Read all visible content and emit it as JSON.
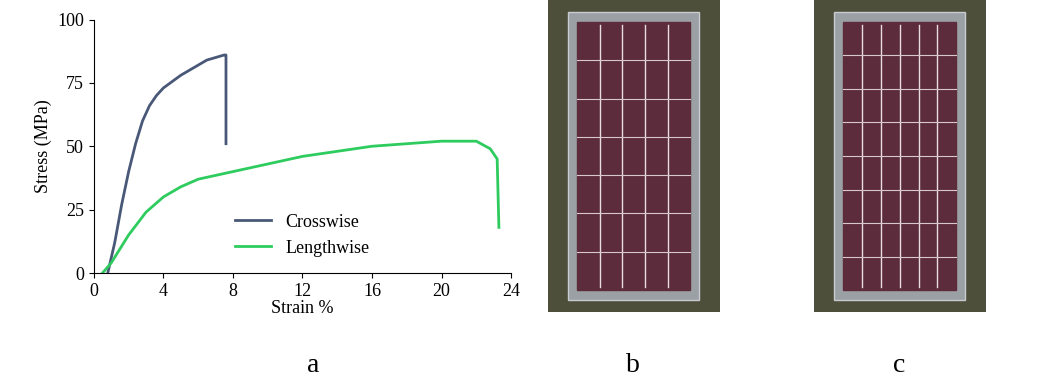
{
  "chart_data": {
    "type": "line",
    "xlabel": "Strain %",
    "ylabel": "Stress (MPa)",
    "xlim": [
      0,
      24
    ],
    "ylim": [
      0,
      100
    ],
    "xticks": [
      0,
      4,
      8,
      12,
      16,
      20,
      24
    ],
    "yticks": [
      0,
      25,
      50,
      75,
      100
    ],
    "legend": "lower center",
    "series": [
      {
        "name": "Crosswise",
        "color": "#4a5878",
        "x": [
          0.8,
          1.2,
          1.6,
          2.0,
          2.4,
          2.8,
          3.2,
          3.6,
          4.0,
          4.4,
          5.0,
          5.5,
          6.0,
          6.5,
          7.0,
          7.5,
          7.6,
          7.6
        ],
        "values": [
          0,
          12,
          27,
          40,
          51,
          60,
          66,
          70,
          73,
          75,
          78,
          80,
          82,
          84,
          85,
          86,
          86,
          51
        ]
      },
      {
        "name": "Lengthwise",
        "color": "#2ecc5e",
        "x": [
          0.5,
          1,
          2,
          3,
          4,
          5,
          6,
          8,
          10,
          12,
          14,
          16,
          18,
          20,
          22,
          22.8,
          23.2,
          23.3
        ],
        "values": [
          0,
          4,
          15,
          24,
          30,
          34,
          37,
          40,
          43,
          46,
          48,
          50,
          51,
          52,
          52,
          49,
          45,
          18
        ]
      }
    ]
  },
  "panel_labels": [
    "a",
    "b",
    "c"
  ]
}
